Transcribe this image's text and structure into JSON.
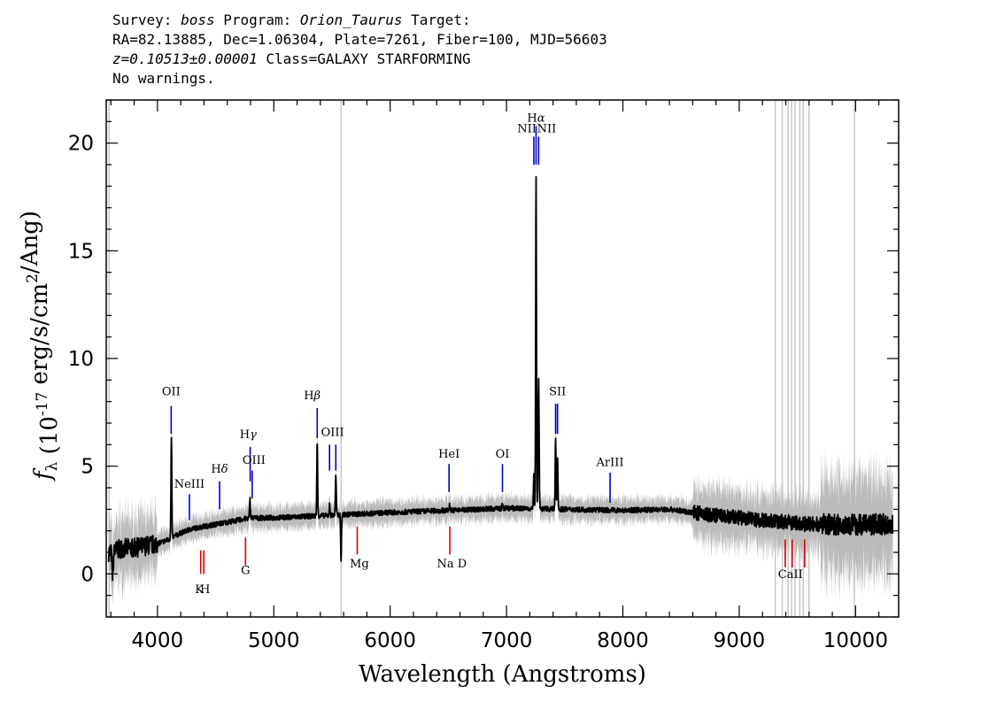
{
  "header": {
    "line1": {
      "survey_label": "Survey: ",
      "survey": "boss",
      "program_label": " Program: ",
      "program": "Orion_Taurus",
      "target_label": " Target:"
    },
    "line2": "RA=82.13885, Dec=1.06304, Plate=7261, Fiber=100, MJD=56603",
    "line3": {
      "redshift": "z=0.10513±0.00001",
      "class": " Class=GALAXY STARFORMING"
    },
    "line4": "No warnings."
  },
  "chart_data": {
    "type": "line",
    "xlabel": "Wavelength (Angstroms)",
    "ylabel": "f_λ (10^-17 erg/s/cm^2/Ang)",
    "xlim": [
      3560,
      10370
    ],
    "ylim": [
      -2,
      22
    ],
    "x_ticks": [
      4000,
      5000,
      6000,
      7000,
      8000,
      9000,
      10000
    ],
    "y_ticks": [
      0,
      5,
      10,
      15,
      20
    ],
    "grid": false,
    "colors": {
      "flux": "#000000",
      "error_band": "#bbbbbb",
      "emission_lines": "#0000cc",
      "absorption_lines": "#dd0000",
      "sky_lines": "#c8c8c8"
    },
    "continuum": {
      "x": [
        3600,
        3700,
        3800,
        3900,
        4000,
        4100,
        4200,
        4300,
        4400,
        4500,
        4600,
        4700,
        4800,
        4900,
        5000,
        5200,
        5400,
        5600,
        5800,
        6000,
        6500,
        7000,
        7500,
        8000,
        8400,
        8800,
        9200,
        9600,
        10000,
        10300
      ],
      "y": [
        1.0,
        1.2,
        1.2,
        1.3,
        1.4,
        1.6,
        1.9,
        2.1,
        2.2,
        2.3,
        2.4,
        2.5,
        2.6,
        2.6,
        2.6,
        2.65,
        2.7,
        2.75,
        2.8,
        2.85,
        2.95,
        3.05,
        3.0,
        2.95,
        3.0,
        2.7,
        2.5,
        2.3,
        2.3,
        2.3
      ]
    },
    "peaks": [
      {
        "x": 4120,
        "y": 6.3,
        "w": 5
      },
      {
        "x": 4795,
        "y": 3.5,
        "w": 5
      },
      {
        "x": 5373,
        "y": 6.1,
        "w": 5
      },
      {
        "x": 5479,
        "y": 3.2,
        "w": 5
      },
      {
        "x": 5533,
        "y": 4.6,
        "w": 5
      },
      {
        "x": 6510,
        "y": 3.2,
        "w": 5
      },
      {
        "x": 6965,
        "y": 3.2,
        "w": 5
      },
      {
        "x": 7235,
        "y": 4.6,
        "w": 5
      },
      {
        "x": 7254,
        "y": 18.5,
        "w": 5
      },
      {
        "x": 7276,
        "y": 9.0,
        "w": 6
      },
      {
        "x": 7422,
        "y": 6.3,
        "w": 5
      },
      {
        "x": 7438,
        "y": 5.5,
        "w": 5
      }
    ],
    "dips": [
      {
        "x": 5578,
        "y": 0.6,
        "w": 5
      },
      {
        "x": 3615,
        "y": 0.0,
        "w": 8
      }
    ],
    "sky_lines": [
      3585,
      5578,
      9310,
      9370,
      9420,
      9450,
      9480,
      9520,
      9550,
      9600,
      9990
    ],
    "line_markers": [
      {
        "label": "OII",
        "x": 4118,
        "type": "emission",
        "y_top": 7.8,
        "y_bottom": 6.5,
        "label_y": 8.3,
        "label_x": 4118
      },
      {
        "label": "NeIII",
        "x": 4275,
        "type": "emission",
        "y_top": 3.7,
        "y_bottom": 2.5,
        "label_y": 4.0,
        "label_x": 4275
      },
      {
        "label": "Hδ",
        "x": 4534,
        "type": "emission",
        "y_top": 4.3,
        "y_bottom": 3.0,
        "label_y": 4.7,
        "label_x": 4534
      },
      {
        "label": "Hγ",
        "x": 4797,
        "type": "emission",
        "y_top": 5.9,
        "y_bottom": 4.3,
        "label_y": 6.3,
        "label_x": 4780
      },
      {
        "label": "OIII",
        "x": 4814,
        "type": "emission",
        "y_top": 4.8,
        "y_bottom": 3.5,
        "label_y": 5.1,
        "label_x": 4830
      },
      {
        "label": "Hβ",
        "x": 5373,
        "type": "emission",
        "y_top": 7.7,
        "y_bottom": 6.3,
        "label_y": 8.1,
        "label_x": 5330
      },
      {
        "label": "OIII",
        "x": 5479,
        "type": "emission",
        "y_top": 6.0,
        "y_bottom": 4.8,
        "label_y": 6.4,
        "label_x": 5505
      },
      {
        "label": "OIII",
        "x": 5533,
        "type": "emission",
        "y_top": 6.0,
        "y_bottom": 4.8,
        "label_y": 6.4,
        "label_x": 5505
      },
      {
        "label": "HeI",
        "x": 6506,
        "type": "emission",
        "y_top": 5.1,
        "y_bottom": 3.8,
        "label_y": 5.4,
        "label_x": 6506
      },
      {
        "label": "OI",
        "x": 6965,
        "type": "emission",
        "y_top": 5.1,
        "y_bottom": 3.8,
        "label_y": 5.4,
        "label_x": 6965
      },
      {
        "label": "NII",
        "x": 7235,
        "type": "emission",
        "y_top": 20.3,
        "y_bottom": 19.0,
        "label_y": 20.5,
        "label_x": 7175
      },
      {
        "label": "Hα",
        "x": 7254,
        "type": "emission",
        "y_top": 20.8,
        "y_bottom": 19.0,
        "label_y": 21.0,
        "label_x": 7254
      },
      {
        "label": "NII",
        "x": 7276,
        "type": "emission",
        "y_top": 20.3,
        "y_bottom": 19.0,
        "label_y": 20.5,
        "label_x": 7345
      },
      {
        "label": "SII",
        "x": 7422,
        "type": "emission",
        "y_top": 7.9,
        "y_bottom": 6.5,
        "label_y": 8.3,
        "label_x": 7438
      },
      {
        "label": "SII",
        "x": 7438,
        "type": "emission",
        "y_top": 7.9,
        "y_bottom": 6.5,
        "label_y": 8.3,
        "label_x": 7438
      },
      {
        "label": "ArIII",
        "x": 7890,
        "type": "emission",
        "y_top": 4.7,
        "y_bottom": 3.3,
        "label_y": 5.0,
        "label_x": 7890
      },
      {
        "label": "K",
        "x": 4372,
        "type": "absorption",
        "y_top": 1.1,
        "y_bottom": 0.0,
        "label_y": -0.9,
        "label_x": 4360
      },
      {
        "label": "H",
        "x": 4398,
        "type": "absorption",
        "y_top": 1.1,
        "y_bottom": 0.0,
        "label_y": -0.9,
        "label_x": 4410
      },
      {
        "label": "G",
        "x": 4757,
        "type": "absorption",
        "y_top": 1.7,
        "y_bottom": 0.4,
        "label_y": 0.0,
        "label_x": 4757
      },
      {
        "label": "Mg",
        "x": 5717,
        "type": "absorption",
        "y_top": 2.2,
        "y_bottom": 0.9,
        "label_y": 0.3,
        "label_x": 5735
      },
      {
        "label": "Na D",
        "x": 6513,
        "type": "absorption",
        "y_top": 2.2,
        "y_bottom": 0.9,
        "label_y": 0.3,
        "label_x": 6530
      },
      {
        "label": "CaII",
        "x": 9395,
        "type": "absorption",
        "y_top": 1.6,
        "y_bottom": 0.3,
        "label_y": -0.2,
        "label_x": 9440
      },
      {
        "label": "",
        "x": 9455,
        "type": "absorption",
        "y_top": 1.6,
        "y_bottom": 0.3
      },
      {
        "label": "",
        "x": 9562,
        "type": "absorption",
        "y_top": 1.6,
        "y_bottom": 0.3
      }
    ]
  }
}
